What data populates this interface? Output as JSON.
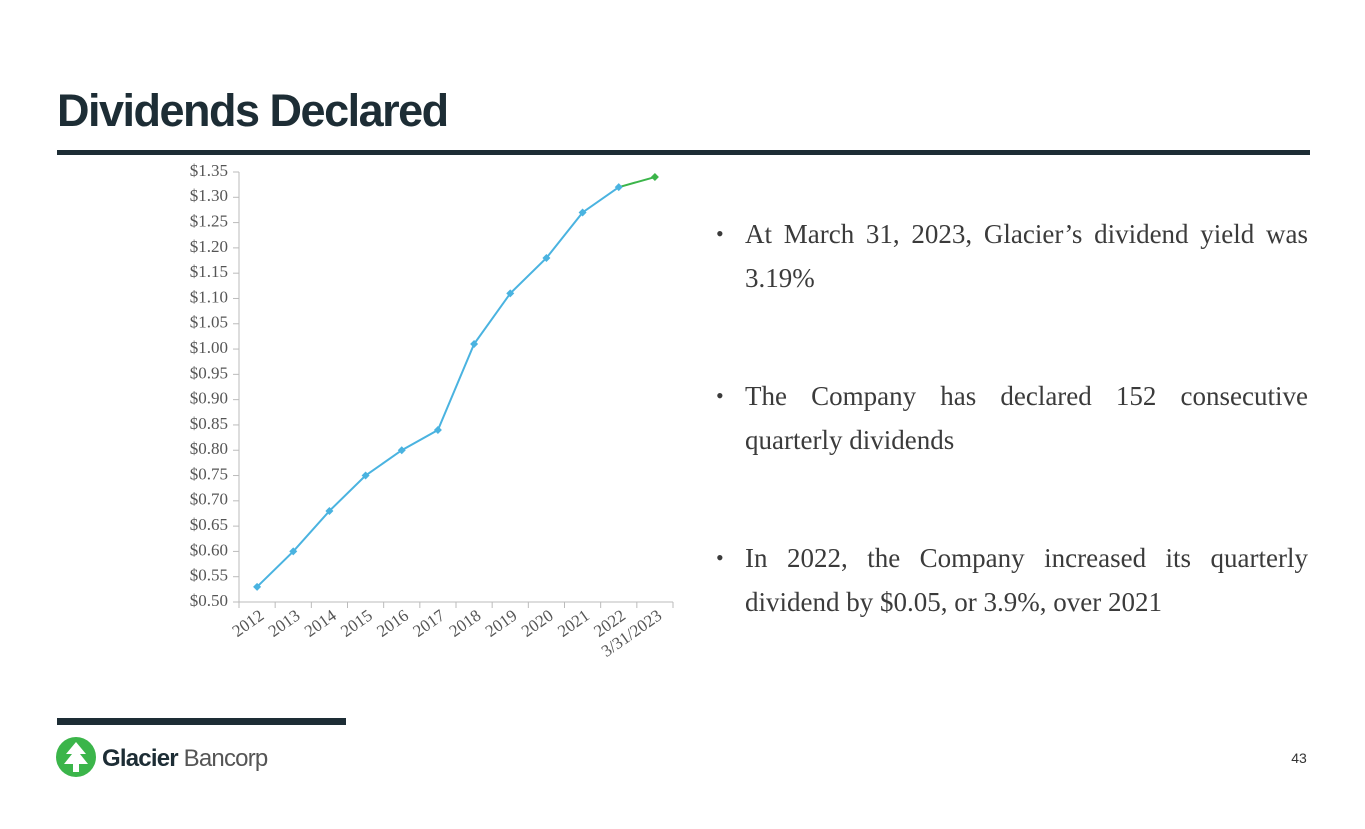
{
  "header": {
    "title": "Dividends Declared"
  },
  "chart_data": {
    "type": "line",
    "categories": [
      "2012",
      "2013",
      "2014",
      "2015",
      "2016",
      "2017",
      "2018",
      "2019",
      "2020",
      "2021",
      "2022",
      "3/31/2023"
    ],
    "values": [
      0.53,
      0.6,
      0.68,
      0.75,
      0.8,
      0.84,
      1.01,
      1.11,
      1.18,
      1.27,
      1.32,
      1.34
    ],
    "color": "#4ab3e0",
    "last_color": "#3bb54a",
    "ylim": [
      0.5,
      1.35
    ],
    "yticks": [
      {
        "value": 0.5,
        "label": "$0.50"
      },
      {
        "value": 0.55,
        "label": "$0.55"
      },
      {
        "value": 0.6,
        "label": "$0.60"
      },
      {
        "value": 0.65,
        "label": "$0.65"
      },
      {
        "value": 0.7,
        "label": "$0.70"
      },
      {
        "value": 0.75,
        "label": "$0.75"
      },
      {
        "value": 0.8,
        "label": "$0.80"
      },
      {
        "value": 0.85,
        "label": "$0.85"
      },
      {
        "value": 0.9,
        "label": "$0.90"
      },
      {
        "value": 0.95,
        "label": "$0.95"
      },
      {
        "value": 1.0,
        "label": "$1.00"
      },
      {
        "value": 1.05,
        "label": "$1.05"
      },
      {
        "value": 1.1,
        "label": "$1.10"
      },
      {
        "value": 1.15,
        "label": "$1.15"
      },
      {
        "value": 1.2,
        "label": "$1.20"
      },
      {
        "value": 1.25,
        "label": "$1.25"
      },
      {
        "value": 1.3,
        "label": "$1.30"
      },
      {
        "value": 1.35,
        "label": "$1.35"
      }
    ],
    "grid": false
  },
  "bullets": [
    "At March 31, 2023, Glacier’s dividend yield was 3.19%",
    "The Company has declared 152 consecutive quarterly dividends",
    "In 2022, the Company increased its quarterly dividend by $0.05, or 3.9%, over 2021"
  ],
  "footer": {
    "logo_bold": "Glacier",
    "logo_light": "Bancorp",
    "page_number": "43"
  }
}
